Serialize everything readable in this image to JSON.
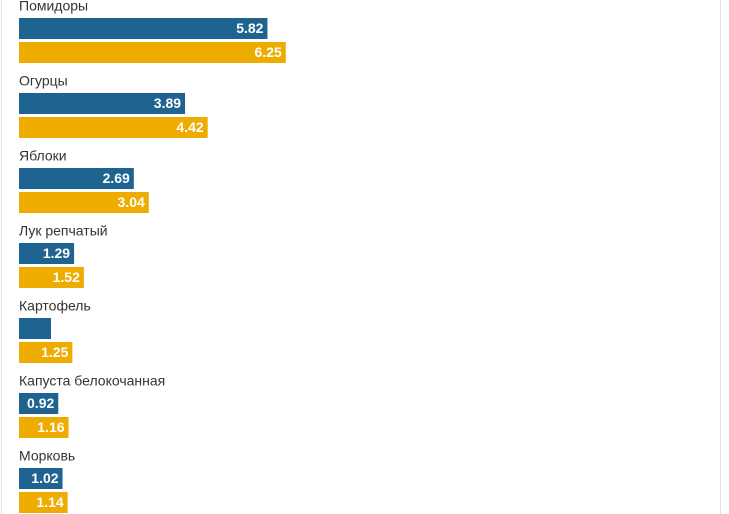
{
  "chart_data": {
    "type": "bar",
    "orientation": "horizontal",
    "categories": [
      "Помидоры",
      "Огурцы",
      "Яблоки",
      "Лук репчатый",
      "Картофель",
      "Капуста белокочанная",
      "Морковь"
    ],
    "series": [
      {
        "color": "#1f6391",
        "values": [
          5.82,
          3.89,
          2.69,
          1.29,
          0.75,
          0.92,
          1.02
        ]
      },
      {
        "color": "#eeab00",
        "values": [
          6.25,
          4.42,
          3.04,
          1.52,
          1.25,
          1.16,
          1.14
        ]
      }
    ],
    "xlim": [
      0,
      16
    ]
  }
}
